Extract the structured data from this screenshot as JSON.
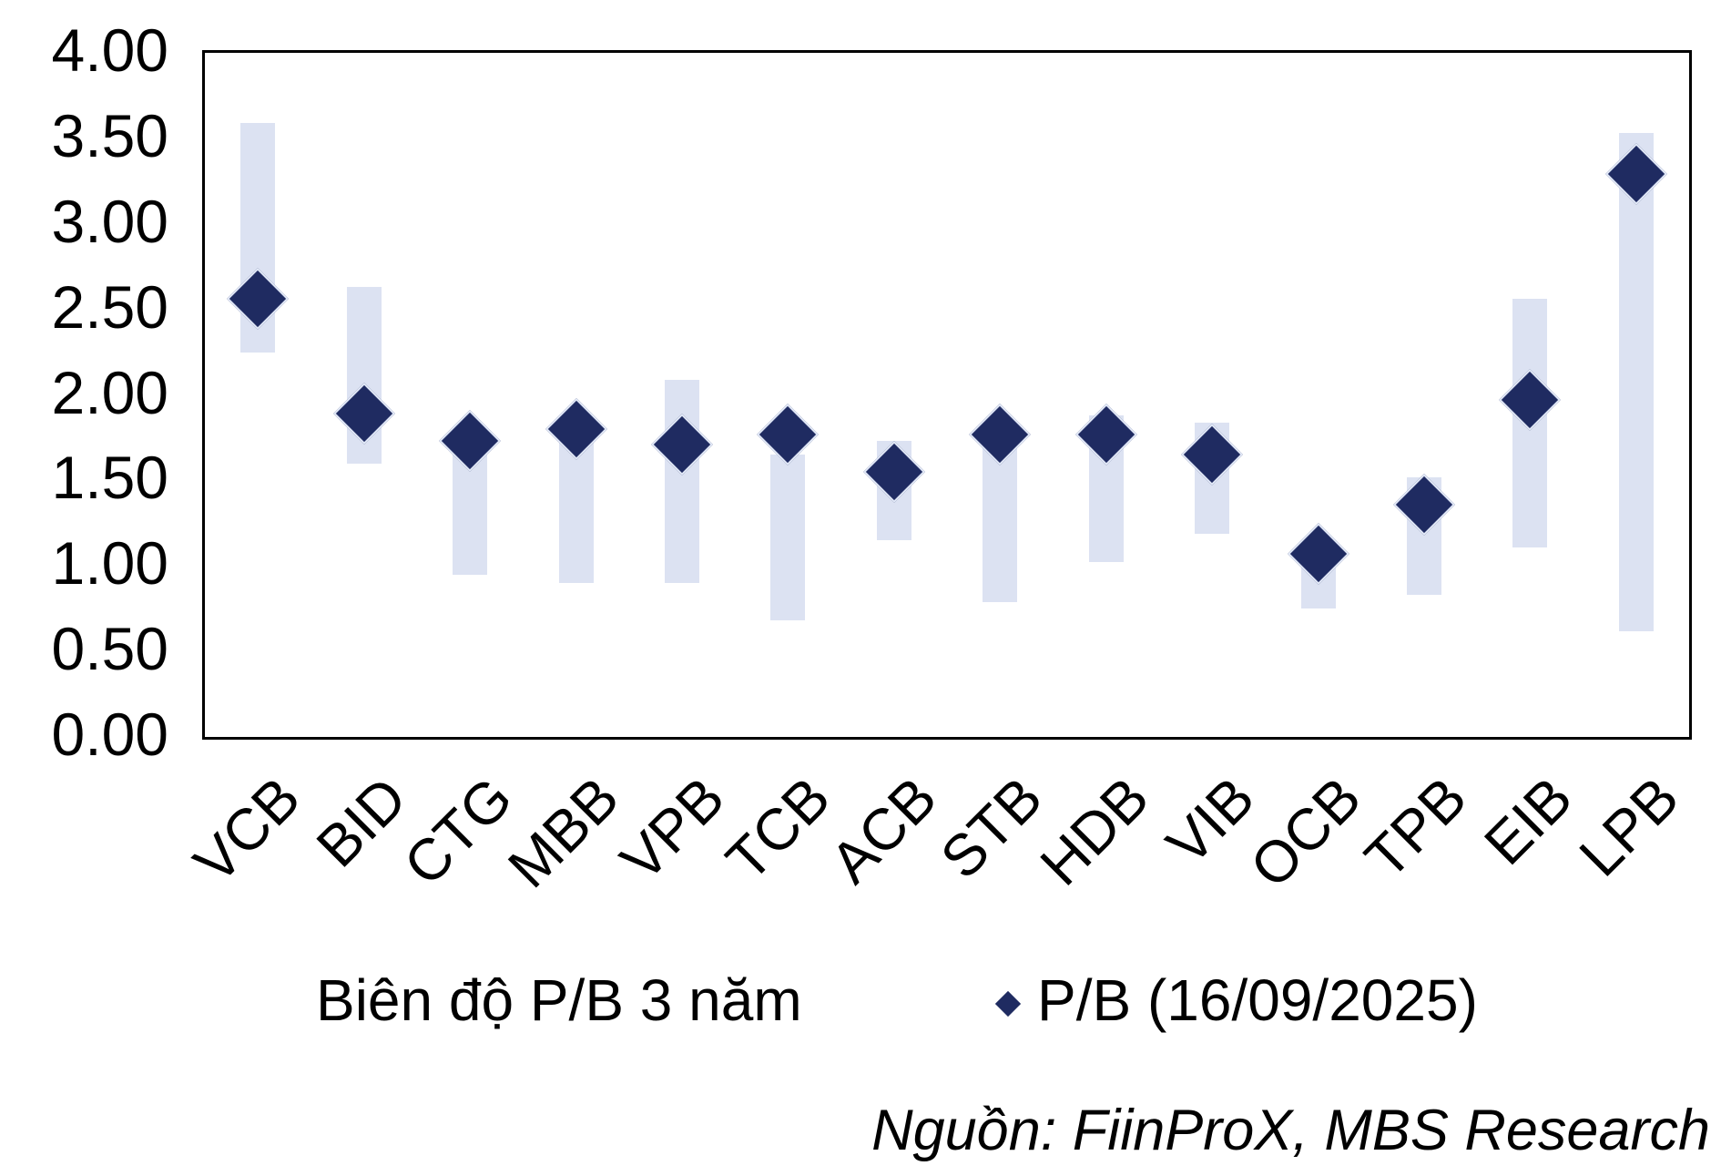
{
  "chart_data": {
    "type": "bar",
    "subtype": "floating-range-bars-with-diamond-markers",
    "categories": [
      "VCB",
      "BID",
      "CTG",
      "MBB",
      "VPB",
      "TCB",
      "ACB",
      "STB",
      "HDB",
      "VIB",
      "OCB",
      "TPB",
      "EIB",
      "LPB"
    ],
    "series": [
      {
        "name": "Biên độ P/B 3 năm",
        "type": "range-bar",
        "color": "#dce2f2",
        "low": [
          2.25,
          1.6,
          0.95,
          0.9,
          0.9,
          0.68,
          1.15,
          0.79,
          1.02,
          1.19,
          0.75,
          0.83,
          1.11,
          0.62
        ],
        "high": [
          3.59,
          2.63,
          1.76,
          1.84,
          2.09,
          1.65,
          1.73,
          1.78,
          1.88,
          1.84,
          1.1,
          1.52,
          2.56,
          3.53
        ]
      },
      {
        "name": "P/B (16/09/2025)",
        "type": "diamond-marker",
        "color": "#1f2b61",
        "values": [
          2.56,
          1.89,
          1.73,
          1.8,
          1.71,
          1.77,
          1.55,
          1.77,
          1.77,
          1.65,
          1.07,
          1.36,
          1.97,
          3.29
        ]
      }
    ],
    "title": "",
    "xlabel": "",
    "ylabel": "",
    "ylim": [
      0,
      4
    ],
    "ytick_values": [
      4.0,
      3.5,
      3.0,
      2.5,
      2.0,
      1.5,
      1.0,
      0.5,
      0.0
    ],
    "ytick_labels": [
      "4.00",
      "3.50",
      "3.00",
      "2.50",
      "2.00",
      "1.50",
      "1.00",
      "0.50",
      "0.00"
    ],
    "grid": false,
    "legend_position": "bottom",
    "source_note": "Nguồn: FiinProX, MBS Research"
  }
}
